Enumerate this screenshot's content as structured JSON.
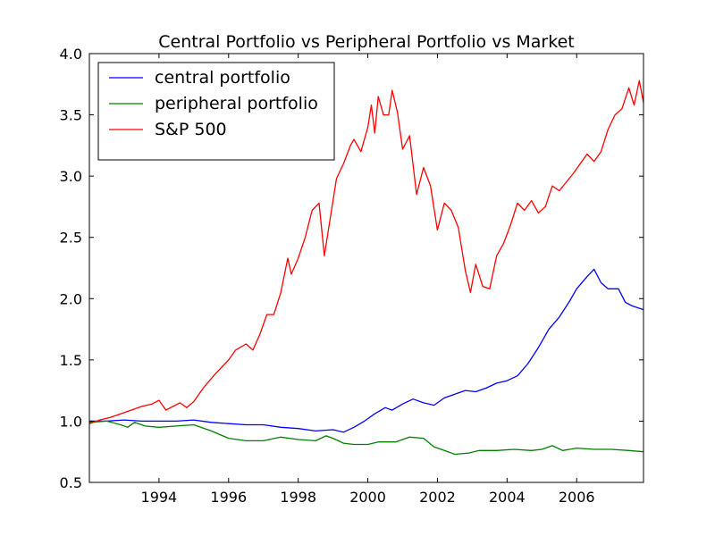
{
  "chart_data": {
    "type": "line",
    "title": "Central Portfolio vs Peripheral Portfolio vs Market",
    "xlabel": "",
    "ylabel": "",
    "xlim": [
      1992.0,
      2007.92
    ],
    "ylim": [
      0.5,
      4.0
    ],
    "x_ticks": [
      1994,
      1996,
      1998,
      2000,
      2002,
      2004,
      2006
    ],
    "y_ticks": [
      0.5,
      1.0,
      1.5,
      2.0,
      2.5,
      3.0,
      3.5,
      4.0
    ],
    "y_tick_labels": [
      "0.5",
      "1.0",
      "1.5",
      "2.0",
      "2.5",
      "3.0",
      "3.5",
      "4.0"
    ],
    "grid": false,
    "legend_position": "top-left",
    "series": [
      {
        "name": "central portfolio",
        "color": "#0000ff",
        "points": [
          [
            1992.0,
            1.0
          ],
          [
            1992.5,
            1.0
          ],
          [
            1993.0,
            1.01
          ],
          [
            1993.5,
            1.0
          ],
          [
            1994.0,
            1.0
          ],
          [
            1994.5,
            1.0
          ],
          [
            1995.0,
            1.01
          ],
          [
            1995.5,
            0.99
          ],
          [
            1996.0,
            0.98
          ],
          [
            1996.5,
            0.97
          ],
          [
            1997.0,
            0.97
          ],
          [
            1997.5,
            0.95
          ],
          [
            1998.0,
            0.94
          ],
          [
            1998.5,
            0.92
          ],
          [
            1999.0,
            0.93
          ],
          [
            1999.3,
            0.91
          ],
          [
            1999.6,
            0.95
          ],
          [
            1999.9,
            1.0
          ],
          [
            2000.2,
            1.06
          ],
          [
            2000.5,
            1.11
          ],
          [
            2000.7,
            1.09
          ],
          [
            2001.0,
            1.14
          ],
          [
            2001.3,
            1.18
          ],
          [
            2001.6,
            1.15
          ],
          [
            2001.9,
            1.13
          ],
          [
            2002.2,
            1.19
          ],
          [
            2002.5,
            1.22
          ],
          [
            2002.8,
            1.25
          ],
          [
            2003.1,
            1.24
          ],
          [
            2003.4,
            1.27
          ],
          [
            2003.7,
            1.31
          ],
          [
            2004.0,
            1.33
          ],
          [
            2004.3,
            1.37
          ],
          [
            2004.6,
            1.47
          ],
          [
            2004.9,
            1.6
          ],
          [
            2005.2,
            1.75
          ],
          [
            2005.5,
            1.85
          ],
          [
            2005.8,
            1.98
          ],
          [
            2006.0,
            2.08
          ],
          [
            2006.3,
            2.18
          ],
          [
            2006.5,
            2.24
          ],
          [
            2006.7,
            2.13
          ],
          [
            2006.9,
            2.08
          ],
          [
            2007.2,
            2.08
          ],
          [
            2007.4,
            1.97
          ],
          [
            2007.6,
            1.94
          ],
          [
            2007.92,
            1.91
          ]
        ]
      },
      {
        "name": "peripheral portfolio",
        "color": "#008000",
        "points": [
          [
            1992.0,
            0.99
          ],
          [
            1992.5,
            1.0
          ],
          [
            1992.9,
            0.97
          ],
          [
            1993.1,
            0.95
          ],
          [
            1993.3,
            0.99
          ],
          [
            1993.6,
            0.96
          ],
          [
            1994.0,
            0.95
          ],
          [
            1994.5,
            0.96
          ],
          [
            1995.0,
            0.97
          ],
          [
            1995.5,
            0.92
          ],
          [
            1996.0,
            0.86
          ],
          [
            1996.5,
            0.84
          ],
          [
            1997.0,
            0.84
          ],
          [
            1997.5,
            0.87
          ],
          [
            1998.0,
            0.85
          ],
          [
            1998.5,
            0.84
          ],
          [
            1998.8,
            0.88
          ],
          [
            1999.0,
            0.86
          ],
          [
            1999.3,
            0.82
          ],
          [
            1999.6,
            0.81
          ],
          [
            2000.0,
            0.81
          ],
          [
            2000.3,
            0.83
          ],
          [
            2000.8,
            0.83
          ],
          [
            2001.2,
            0.87
          ],
          [
            2001.6,
            0.86
          ],
          [
            2001.9,
            0.79
          ],
          [
            2002.2,
            0.76
          ],
          [
            2002.5,
            0.73
          ],
          [
            2002.9,
            0.74
          ],
          [
            2003.2,
            0.76
          ],
          [
            2003.7,
            0.76
          ],
          [
            2004.2,
            0.77
          ],
          [
            2004.7,
            0.76
          ],
          [
            2005.0,
            0.77
          ],
          [
            2005.3,
            0.8
          ],
          [
            2005.6,
            0.76
          ],
          [
            2006.0,
            0.78
          ],
          [
            2006.5,
            0.77
          ],
          [
            2007.0,
            0.77
          ],
          [
            2007.5,
            0.76
          ],
          [
            2007.92,
            0.75
          ]
        ]
      },
      {
        "name": "S&P 500",
        "color": "#ff0000",
        "points": [
          [
            1992.0,
            0.98
          ],
          [
            1992.3,
            1.01
          ],
          [
            1992.6,
            1.03
          ],
          [
            1992.9,
            1.06
          ],
          [
            1993.2,
            1.09
          ],
          [
            1993.5,
            1.12
          ],
          [
            1993.8,
            1.14
          ],
          [
            1994.0,
            1.17
          ],
          [
            1994.2,
            1.09
          ],
          [
            1994.4,
            1.12
          ],
          [
            1994.6,
            1.15
          ],
          [
            1994.8,
            1.11
          ],
          [
            1995.0,
            1.16
          ],
          [
            1995.3,
            1.28
          ],
          [
            1995.6,
            1.38
          ],
          [
            1995.9,
            1.47
          ],
          [
            1996.0,
            1.5
          ],
          [
            1996.2,
            1.58
          ],
          [
            1996.5,
            1.63
          ],
          [
            1996.7,
            1.58
          ],
          [
            1996.9,
            1.71
          ],
          [
            1997.1,
            1.87
          ],
          [
            1997.3,
            1.87
          ],
          [
            1997.5,
            2.05
          ],
          [
            1997.7,
            2.33
          ],
          [
            1997.8,
            2.2
          ],
          [
            1998.0,
            2.33
          ],
          [
            1998.2,
            2.5
          ],
          [
            1998.4,
            2.72
          ],
          [
            1998.6,
            2.78
          ],
          [
            1998.75,
            2.35
          ],
          [
            1998.9,
            2.62
          ],
          [
            1999.1,
            2.98
          ],
          [
            1999.3,
            3.1
          ],
          [
            1999.5,
            3.25
          ],
          [
            1999.6,
            3.3
          ],
          [
            1999.8,
            3.2
          ],
          [
            2000.0,
            3.4
          ],
          [
            2000.1,
            3.58
          ],
          [
            2000.2,
            3.35
          ],
          [
            2000.3,
            3.65
          ],
          [
            2000.45,
            3.5
          ],
          [
            2000.6,
            3.5
          ],
          [
            2000.7,
            3.7
          ],
          [
            2000.85,
            3.52
          ],
          [
            2001.0,
            3.22
          ],
          [
            2001.2,
            3.33
          ],
          [
            2001.4,
            2.85
          ],
          [
            2001.6,
            3.07
          ],
          [
            2001.8,
            2.92
          ],
          [
            2002.0,
            2.56
          ],
          [
            2002.2,
            2.78
          ],
          [
            2002.4,
            2.72
          ],
          [
            2002.6,
            2.58
          ],
          [
            2002.8,
            2.23
          ],
          [
            2002.95,
            2.05
          ],
          [
            2003.1,
            2.28
          ],
          [
            2003.3,
            2.1
          ],
          [
            2003.5,
            2.08
          ],
          [
            2003.7,
            2.35
          ],
          [
            2003.9,
            2.45
          ],
          [
            2004.1,
            2.6
          ],
          [
            2004.3,
            2.78
          ],
          [
            2004.5,
            2.72
          ],
          [
            2004.7,
            2.8
          ],
          [
            2004.9,
            2.7
          ],
          [
            2005.1,
            2.75
          ],
          [
            2005.3,
            2.92
          ],
          [
            2005.5,
            2.88
          ],
          [
            2005.7,
            2.95
          ],
          [
            2005.9,
            3.02
          ],
          [
            2006.1,
            3.1
          ],
          [
            2006.3,
            3.18
          ],
          [
            2006.5,
            3.12
          ],
          [
            2006.7,
            3.2
          ],
          [
            2006.9,
            3.38
          ],
          [
            2007.1,
            3.5
          ],
          [
            2007.3,
            3.55
          ],
          [
            2007.5,
            3.72
          ],
          [
            2007.65,
            3.58
          ],
          [
            2007.8,
            3.78
          ],
          [
            2007.92,
            3.6
          ]
        ]
      }
    ]
  }
}
